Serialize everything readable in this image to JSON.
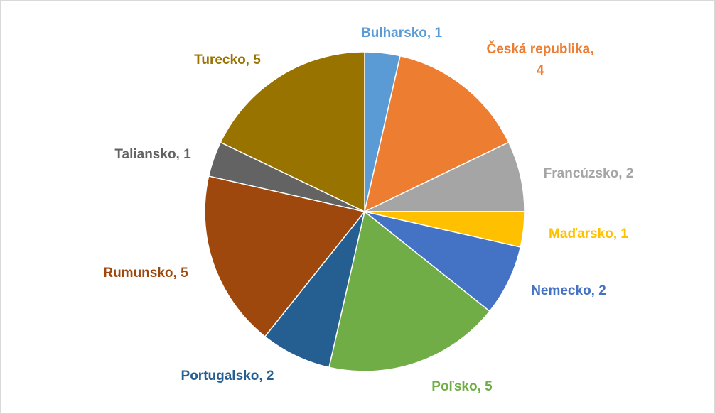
{
  "chart_data": {
    "type": "pie",
    "values": [
      1,
      4,
      2,
      1,
      2,
      5,
      2,
      5,
      1,
      5
    ],
    "value_labels": [
      "Bulharsko, 1",
      "Česká republika, 4",
      "Francúzsko, 2",
      "Maďarsko, 1",
      "Nemecko, 2",
      "Poľsko, 5",
      "Portugalsko, 2",
      "Rumunsko, 5",
      "Taliansko, 1",
      "Turecko, 5"
    ],
    "colors": [
      "#5b9bd5",
      "#ed7d31",
      "#a5a5a5",
      "#ffc000",
      "#4472c4",
      "#70ad47",
      "#255e91",
      "#9e480e",
      "#636363",
      "#997300"
    ]
  }
}
